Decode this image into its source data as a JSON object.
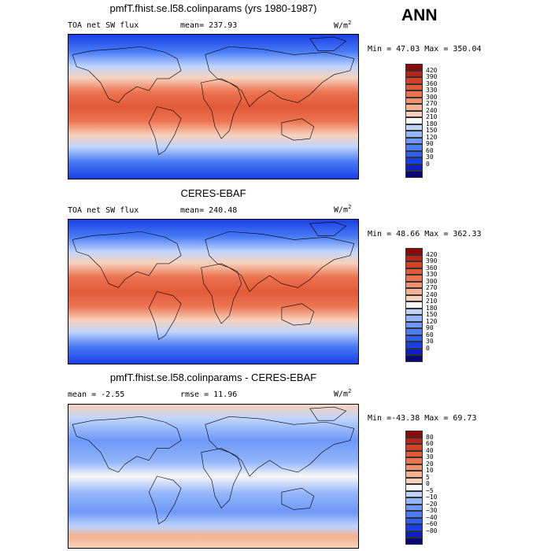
{
  "season": "ANN",
  "colors": {
    "sw": [
      "#08087a",
      "#0a1fc8",
      "#1a3fe6",
      "#2e5ff0",
      "#4a7cf5",
      "#6d98f7",
      "#93b5fa",
      "#bed4fc",
      "#f7f7f7",
      "#f7d2bd",
      "#f5b191",
      "#f1926e",
      "#ec7350",
      "#e35a38",
      "#d44128",
      "#b8261a",
      "#8a0a0a"
    ],
    "diff": [
      "#08087a",
      "#0a1fc8",
      "#1a3fe6",
      "#2e5ff0",
      "#4a7cf5",
      "#6d98f7",
      "#93b5fa",
      "#bed4fc",
      "#f7f7f7",
      "#f7d2bd",
      "#f5b191",
      "#f1926e",
      "#ec7350",
      "#e35a38",
      "#d44128",
      "#b8261a",
      "#8a0a0a"
    ]
  },
  "panels": [
    {
      "title": "pmfT.fhist.se.l58.colinparams (yrs 1980-1987)",
      "left_text": "TOA net SW flux",
      "mid_text": "mean= 237.93",
      "units_base": "W/m",
      "units_exp": "2",
      "minmax": "Min =  47.03 Max = 350.04",
      "colorbar_labels": [
        "420",
        "390",
        "360",
        "330",
        "300",
        "270",
        "240",
        "210",
        "180",
        "150",
        "120",
        "90",
        "60",
        "30",
        "0"
      ]
    },
    {
      "title": "CERES-EBAF",
      "left_text": "TOA net SW flux",
      "mid_text": "mean= 240.48",
      "units_base": "W/m",
      "units_exp": "2",
      "minmax": "Min =  48.66 Max = 362.33",
      "colorbar_labels": [
        "420",
        "390",
        "360",
        "330",
        "300",
        "270",
        "240",
        "210",
        "180",
        "150",
        "120",
        "90",
        "60",
        "30",
        "0"
      ]
    },
    {
      "title": "pmfT.fhist.se.l58.colinparams - CERES-EBAF",
      "left_text": "mean =  -2.55",
      "mid_text": "rmse =  11.96",
      "units_base": "W/m",
      "units_exp": "2",
      "minmax": "Min =-43.38 Max =  69.73",
      "colorbar_labels": [
        "80",
        "60",
        "40",
        "30",
        "20",
        "10",
        "5",
        "0",
        "−5",
        "−10",
        "−20",
        "−30",
        "−40",
        "−60",
        "−80"
      ]
    }
  ],
  "chart_data": [
    {
      "type": "heatmap",
      "title": "pmfT.fhist.se.l58.colinparams (yrs 1980-1987)",
      "variable": "TOA net SW flux",
      "units": "W/m2",
      "mean": 237.93,
      "min": 47.03,
      "max": 350.04,
      "levels": [
        0,
        30,
        60,
        90,
        120,
        150,
        180,
        210,
        240,
        270,
        300,
        330,
        360,
        390,
        420
      ]
    },
    {
      "type": "heatmap",
      "title": "CERES-EBAF",
      "variable": "TOA net SW flux",
      "units": "W/m2",
      "mean": 240.48,
      "min": 48.66,
      "max": 362.33,
      "levels": [
        0,
        30,
        60,
        90,
        120,
        150,
        180,
        210,
        240,
        270,
        300,
        330,
        360,
        390,
        420
      ]
    },
    {
      "type": "heatmap",
      "title": "pmfT.fhist.se.l58.colinparams - CERES-EBAF",
      "units": "W/m2",
      "mean": -2.55,
      "rmse": 11.96,
      "min": -43.38,
      "max": 69.73,
      "levels": [
        -80,
        -60,
        -40,
        -30,
        -20,
        -10,
        -5,
        0,
        5,
        10,
        20,
        30,
        40,
        60,
        80
      ]
    }
  ]
}
